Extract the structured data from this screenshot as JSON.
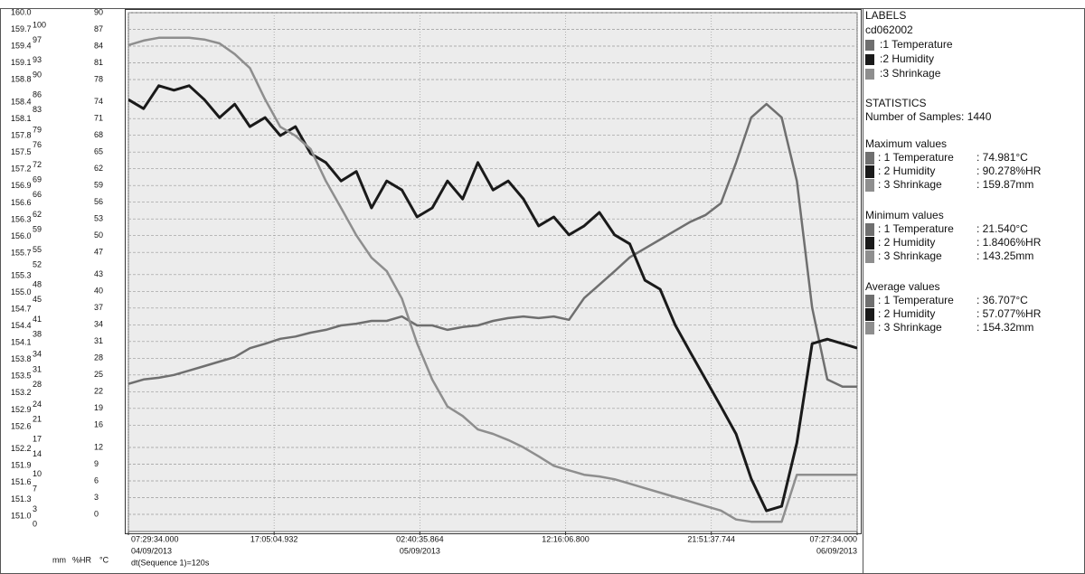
{
  "chart_data": {
    "type": "line",
    "x": [
      "2013-09-04T07:29:34",
      "2013-09-04T08:29:34",
      "2013-09-04T09:29:34",
      "2013-09-04T10:29:34",
      "2013-09-04T11:29:34",
      "2013-09-04T12:29:34",
      "2013-09-04T13:29:34",
      "2013-09-04T14:29:34",
      "2013-09-04T15:29:34",
      "2013-09-04T16:29:34",
      "2013-09-04T17:29:34",
      "2013-09-04T18:29:34",
      "2013-09-04T19:29:34",
      "2013-09-04T20:29:34",
      "2013-09-04T21:29:34",
      "2013-09-04T22:29:34",
      "2013-09-04T23:29:34",
      "2013-09-05T00:29:34",
      "2013-09-05T01:29:34",
      "2013-09-05T02:29:34",
      "2013-09-05T03:29:34",
      "2013-09-05T04:29:34",
      "2013-09-05T05:29:34",
      "2013-09-05T06:29:34",
      "2013-09-05T07:29:34",
      "2013-09-05T08:29:34",
      "2013-09-05T09:29:34",
      "2013-09-05T10:29:34",
      "2013-09-05T11:29:34",
      "2013-09-05T12:29:34",
      "2013-09-05T13:29:34",
      "2013-09-05T14:29:34",
      "2013-09-05T15:29:34",
      "2013-09-05T16:29:34",
      "2013-09-05T17:29:34",
      "2013-09-05T18:29:34",
      "2013-09-05T19:29:34",
      "2013-09-05T20:29:34",
      "2013-09-05T21:29:34",
      "2013-09-05T22:29:34",
      "2013-09-05T23:29:34",
      "2013-09-06T00:29:34",
      "2013-09-06T01:29:34",
      "2013-09-06T02:29:34",
      "2013-09-06T03:29:34",
      "2013-09-06T04:29:34",
      "2013-09-06T05:29:34",
      "2013-09-06T06:29:34",
      "2013-09-06T07:27:34"
    ],
    "series": [
      {
        "name": ":1 Temperature",
        "color": "#6f6f6f",
        "axis": "y3",
        "values": [
          23.4,
          24.2,
          24.5,
          25.0,
          25.8,
          26.6,
          27.4,
          28.2,
          29.8,
          30.6,
          31.5,
          31.9,
          32.6,
          33.1,
          33.9,
          34.2,
          34.7,
          34.7,
          35.5,
          33.9,
          33.9,
          33.1,
          33.6,
          33.9,
          34.7,
          35.2,
          35.5,
          35.2,
          35.5,
          34.9,
          38.8,
          41.2,
          43.6,
          46.1,
          47.7,
          49.3,
          50.9,
          52.5,
          53.7,
          55.8,
          63.1,
          71.2,
          73.6,
          71.2,
          59.8,
          37.1,
          24.2,
          22.9,
          22.9
        ]
      },
      {
        "name": ":2 Humidity",
        "color": "#1a1a1a",
        "axis": "y2",
        "values": [
          85.1,
          83.3,
          87.9,
          87.0,
          87.9,
          85.1,
          81.5,
          84.2,
          79.7,
          81.5,
          77.9,
          79.7,
          74.3,
          72.5,
          68.8,
          70.7,
          63.4,
          68.8,
          67.0,
          61.6,
          63.4,
          68.8,
          65.2,
          72.5,
          67.0,
          68.8,
          65.2,
          59.8,
          61.6,
          58.0,
          59.8,
          62.5,
          58.0,
          56.2,
          48.9,
          47.1,
          39.9,
          34.4,
          29.0,
          23.6,
          18.1,
          9.1,
          2.7,
          3.6,
          16.3,
          36.2,
          37.1,
          36.2,
          35.3
        ]
      },
      {
        "name": ":3 Shrinkage",
        "color": "#8e8e8e",
        "axis": "y",
        "values": [
          159.42,
          159.5,
          159.55,
          159.55,
          159.55,
          159.52,
          159.45,
          159.26,
          159.01,
          158.45,
          157.96,
          157.8,
          157.56,
          156.99,
          156.51,
          156.02,
          155.62,
          155.38,
          154.89,
          154.09,
          153.44,
          152.96,
          152.79,
          152.55,
          152.47,
          152.36,
          152.23,
          152.07,
          151.9,
          151.82,
          151.74,
          151.71,
          151.66,
          151.58,
          151.5,
          151.42,
          151.34,
          151.26,
          151.18,
          151.1,
          150.94,
          150.9,
          150.9,
          150.9,
          151.74,
          151.74,
          151.74,
          151.74,
          151.74
        ]
      }
    ],
    "xlim": [
      "2013-09-04T07:29:34",
      "2013-09-06T07:27:34"
    ],
    "xticks": [
      {
        "value": "2013-09-04T07:29:34.000",
        "label": "07:29:34.000"
      },
      {
        "value": "2013-09-04T17:05:04.932",
        "label": "17:05:04.932"
      },
      {
        "value": "2013-09-05T02:40:35.864",
        "label": "02:40:35.864"
      },
      {
        "value": "2013-09-05T12:16:06.800",
        "label": "12:16:06.800"
      },
      {
        "value": "2013-09-05T21:51:37.744",
        "label": "21:51:37.744"
      },
      {
        "value": "2013-09-06T07:27:34.000",
        "label": "07:27:34.000"
      }
    ],
    "xtick_dates": [
      "04/09/2013",
      null,
      "05/09/2013",
      null,
      null,
      "06/09/2013"
    ],
    "ylabel": "mm",
    "ylim": [
      151,
      160
    ],
    "yticks": [
      {
        "value": 160,
        "label": "160.0"
      },
      159.7,
      159.4,
      159.1,
      158.8,
      158.4,
      158.1,
      157.8,
      157.5,
      157.2,
      156.9,
      156.6,
      156.3,
      {
        "value": 156,
        "label": "156.0"
      },
      155.7,
      155.3,
      {
        "value": 155,
        "label": "155.0"
      },
      154.7,
      154.4,
      154.1,
      153.8,
      153.5,
      153.2,
      152.9,
      152.6,
      152.2,
      151.9,
      151.6,
      151.3,
      {
        "value": 151,
        "label": "151.0"
      }
    ],
    "y2label": "%HR",
    "y2lim": [
      0,
      100
    ],
    "y2ticks": [
      100,
      97,
      93,
      90,
      86,
      83,
      79,
      76,
      72,
      69,
      66,
      62,
      59,
      55,
      52,
      48,
      45,
      41,
      38,
      34,
      31,
      28,
      24,
      21,
      17,
      14,
      10,
      7,
      3,
      0
    ],
    "y3label": "°C",
    "y3lim": [
      0,
      90
    ],
    "y3ticks": [
      90,
      87,
      84,
      81,
      78,
      74,
      71,
      68,
      65,
      62,
      59,
      56,
      53,
      50,
      47,
      43,
      40,
      37,
      34,
      31,
      28,
      25,
      22,
      19,
      16,
      12,
      9,
      6,
      3,
      0
    ],
    "grid": true,
    "footnote": "dt(Sequence 1)=120s",
    "side_panel": {
      "labels_title": "LABELS",
      "file": "cd062002",
      "statistics_title": "STATISTICS",
      "samples": "Number of Samples: 1440",
      "groups": [
        {
          "title": "Maximum values",
          "rows": [
            [
              ": 1  Temperature",
              ": 74.981°C"
            ],
            [
              ": 2  Humidity",
              ": 90.278%HR"
            ],
            [
              ": 3  Shrinkage",
              ": 159.87mm"
            ]
          ]
        },
        {
          "title": "Minimum values",
          "rows": [
            [
              ": 1  Temperature",
              ": 21.540°C"
            ],
            [
              ": 2  Humidity",
              ": 1.8406%HR"
            ],
            [
              ": 3  Shrinkage",
              ": 143.25mm"
            ]
          ]
        },
        {
          "title": "Average values",
          "rows": [
            [
              ": 1  Temperature",
              ": 36.707°C"
            ],
            [
              ": 2  Humidity",
              ": 57.077%HR"
            ],
            [
              ": 3  Shrinkage",
              ": 154.32mm"
            ]
          ]
        }
      ]
    }
  }
}
